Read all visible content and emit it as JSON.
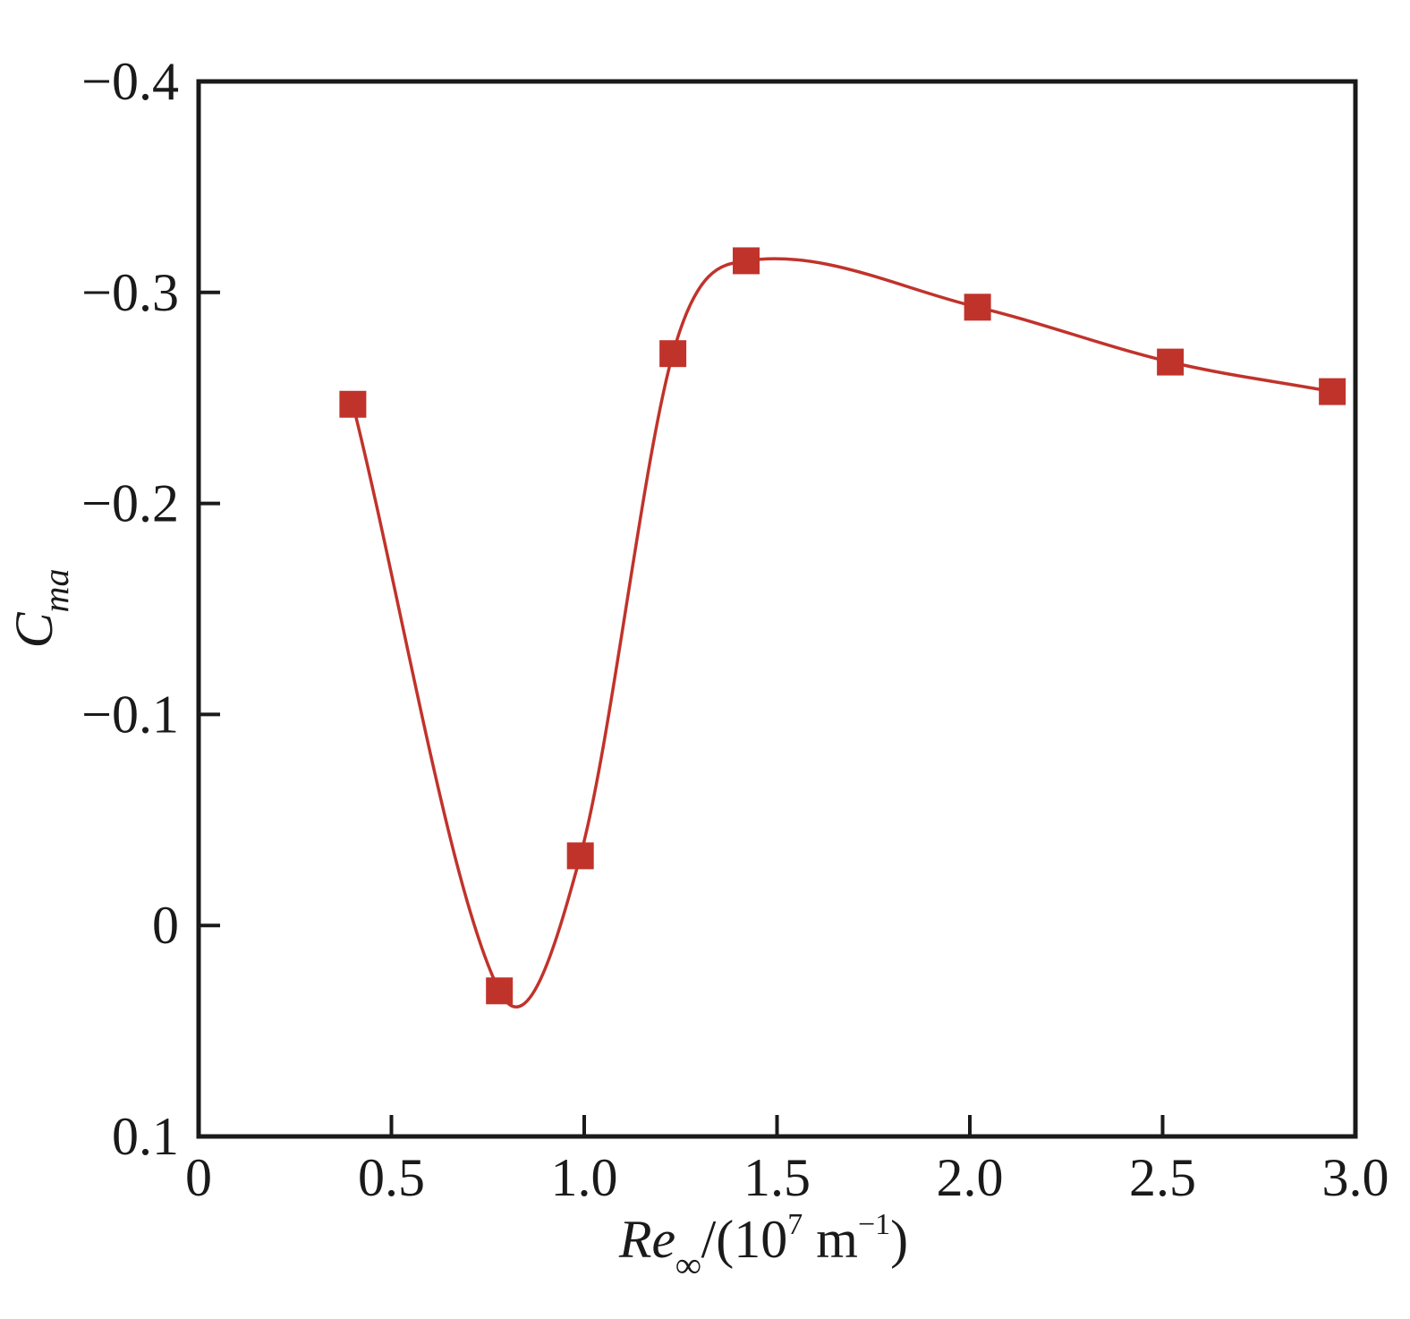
{
  "chart_data": {
    "type": "line",
    "xlabel": {
      "main": "Re",
      "sub": "∞",
      "rest_prefix": "/(10",
      "rest_exp": "7",
      "rest_mid": " m",
      "rest_exp2": "−1",
      "rest_suffix": ")"
    },
    "ylabel": {
      "main": "C",
      "sub": "ma"
    },
    "xlim": [
      0,
      3.0
    ],
    "ylim": [
      0.1,
      -0.4
    ],
    "y_axis_inverted": true,
    "x_ticks": [
      {
        "value": 0,
        "label": "0"
      },
      {
        "value": 0.5,
        "label": "0.5"
      },
      {
        "value": 1.0,
        "label": "1.0"
      },
      {
        "value": 1.5,
        "label": "1.5"
      },
      {
        "value": 2.0,
        "label": "2.0"
      },
      {
        "value": 2.5,
        "label": "2.5"
      },
      {
        "value": 3.0,
        "label": "3.0"
      }
    ],
    "y_ticks": [
      {
        "value": -0.4,
        "label": "−0.4"
      },
      {
        "value": -0.3,
        "label": "−0.3"
      },
      {
        "value": -0.2,
        "label": "−0.2"
      },
      {
        "value": -0.1,
        "label": "−0.1"
      },
      {
        "value": 0,
        "label": "0"
      },
      {
        "value": 0.1,
        "label": "0.1"
      }
    ],
    "grid": false,
    "series": [
      {
        "color": "#c0332b",
        "marker": "square",
        "x": [
          0.4,
          0.78,
          0.99,
          1.23,
          1.42,
          2.02,
          2.52,
          2.94
        ],
        "y": [
          -0.247,
          0.031,
          -0.033,
          -0.271,
          -0.315,
          -0.293,
          -0.267,
          -0.253
        ]
      }
    ]
  }
}
